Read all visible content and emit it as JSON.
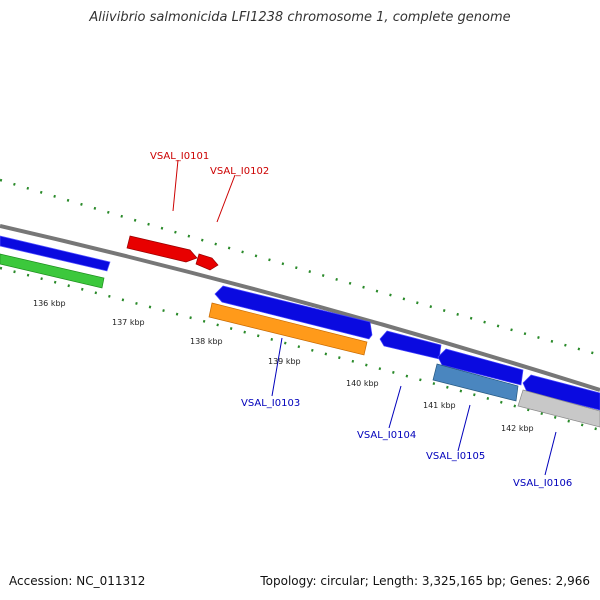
{
  "title": "Aliivibrio salmonicida LFI1238 chromosome 1, complete genome",
  "footer": {
    "accession": "Accession: NC_011312",
    "summary": "Topology: circular; Length: 3,325,165 bp; Genes: 2,966"
  },
  "colors": {
    "backbone": "#777777",
    "tick": "#2a8a2a",
    "forward_label": "#cc0000",
    "reverse_label": "#0000bb"
  },
  "scale_labels": [
    "136 kbp",
    "137 kbp",
    "138 kbp",
    "139 kbp",
    "140 kbp",
    "141 kbp",
    "142 kbp"
  ],
  "genes": [
    {
      "id": "prev-blue",
      "label": "",
      "strand": "forward",
      "color": "#0a0ae0"
    },
    {
      "id": "prev-green",
      "label": "",
      "strand": "reverse",
      "color": "#3cc83c"
    },
    {
      "id": "VSAL_I0101",
      "label": "VSAL_I0101",
      "strand": "forward",
      "color": "#e80000"
    },
    {
      "id": "VSAL_I0102",
      "label": "VSAL_I0102",
      "strand": "forward",
      "color": "#e80000"
    },
    {
      "id": "VSAL_I0103-blue",
      "label": "",
      "strand": "forward",
      "color": "#0a0ae0"
    },
    {
      "id": "VSAL_I0103",
      "label": "VSAL_I0103",
      "strand": "reverse",
      "color": "#ff9a1a"
    },
    {
      "id": "VSAL_I0104",
      "label": "VSAL_I0104",
      "strand": "forward",
      "color": "#0a0ae0"
    },
    {
      "id": "VSAL_I0105",
      "label": "VSAL_I0105",
      "strand": "forward",
      "color": "#0a0ae0"
    },
    {
      "id": "VSAL_I0105-steel",
      "label": "",
      "strand": "reverse",
      "color": "#4a86bf"
    },
    {
      "id": "VSAL_I0106",
      "label": "VSAL_I0106",
      "strand": "forward",
      "color": "#0a0ae0"
    },
    {
      "id": "VSAL_I0106-grey",
      "label": "",
      "strand": "reverse",
      "color": "#c8c8c8"
    }
  ]
}
